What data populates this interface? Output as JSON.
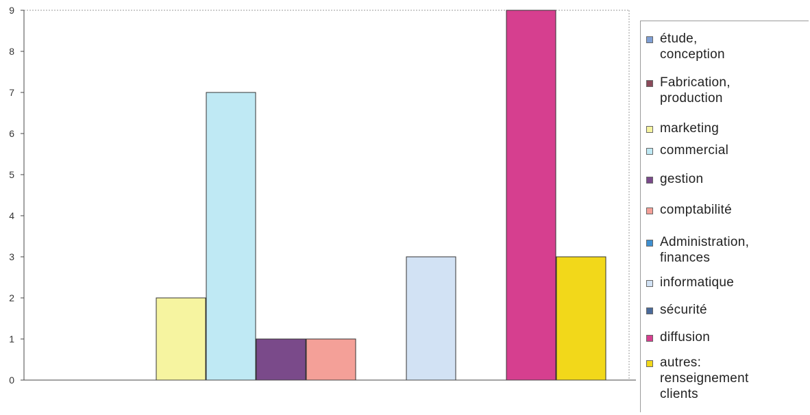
{
  "chart_data": {
    "type": "bar",
    "title": "",
    "xlabel": "",
    "ylabel": "",
    "ylim": [
      0,
      9
    ],
    "yticks": [
      "0",
      "1",
      "2",
      "3",
      "4",
      "5",
      "6",
      "7",
      "8",
      "9"
    ],
    "grid": false,
    "legend_position": "right",
    "series": [
      {
        "name": "étude,\nconception",
        "color": "#7f9fd4",
        "value": 0,
        "slot": 0
      },
      {
        "name": "Fabrication,\n production",
        "color": "#8a4a5a",
        "value": 0,
        "slot": 1
      },
      {
        "name": "marketing",
        "color": "#f6f4a0",
        "value": 2,
        "slot": 2
      },
      {
        "name": "commercial",
        "color": "#bfe9f4",
        "value": 7,
        "slot": 3
      },
      {
        "name": "gestion",
        "color": "#7a4a8a",
        "value": 1,
        "slot": 4
      },
      {
        "name": "comptabilité",
        "color": "#f4a098",
        "value": 1,
        "slot": 5
      },
      {
        "name": "Administration,\n finances",
        "color": "#3f8fd0",
        "value": 0,
        "slot": 6
      },
      {
        "name": "informatique",
        "color": "#d2e2f4",
        "value": 3,
        "slot": 7
      },
      {
        "name": "sécurité",
        "color": "#4a6a9a",
        "value": 0,
        "slot": 8
      },
      {
        "name": "diffusion",
        "color": "#d63f8f",
        "value": 9,
        "slot": 9
      },
      {
        "name": "autres:\nrenseignement\nclients",
        "color": "#f2d81a",
        "value": 3,
        "slot": 10
      }
    ]
  }
}
